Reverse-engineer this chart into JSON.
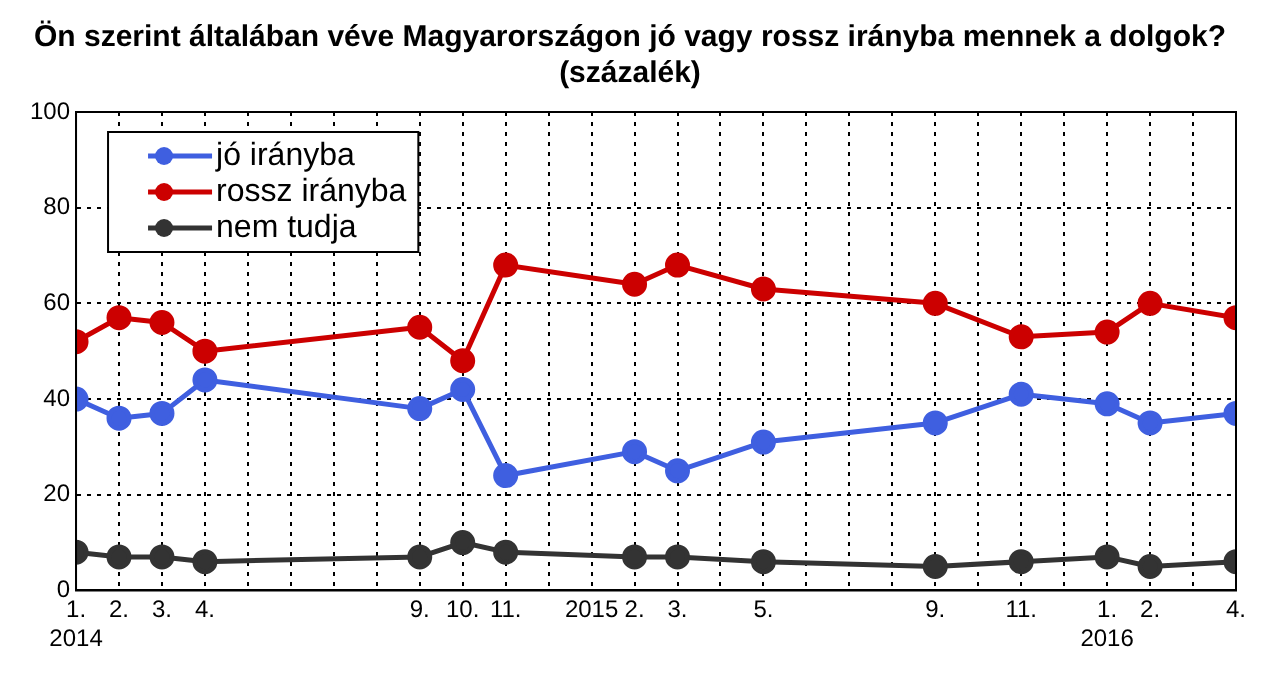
{
  "chart_data": {
    "type": "line",
    "title": "Ön szerint általában véve Magyarországon jó vagy rossz irányba mennek a dolgok?",
    "subtitle": "(százalék)",
    "x": [
      "2014-01",
      "2014-02",
      "2014-03",
      "2014-04",
      "2014-09",
      "2014-10",
      "2014-11",
      "2015-02",
      "2015-03",
      "2015-05",
      "2015-09",
      "2015-11",
      "2016-01",
      "2016-02",
      "2016-04"
    ],
    "series": [
      {
        "name": "jó irányba",
        "color": "#3f5fe0",
        "values": [
          40,
          36,
          37,
          44,
          38,
          42,
          24,
          29,
          25,
          31,
          35,
          41,
          39,
          35,
          37
        ]
      },
      {
        "name": "rossz irányba",
        "color": "#cc0000",
        "values": [
          52,
          57,
          56,
          50,
          55,
          48,
          68,
          64,
          68,
          63,
          60,
          53,
          54,
          60,
          57
        ]
      },
      {
        "name": "nem tudja",
        "color": "#333333",
        "values": [
          8,
          7,
          7,
          6,
          7,
          10,
          8,
          7,
          7,
          6,
          5,
          6,
          7,
          5,
          6
        ]
      }
    ],
    "xlim": [
      "2014-01",
      "2016-04"
    ],
    "xticks": [
      {
        "value": "2014-01",
        "label": "1.\n2014"
      },
      {
        "value": "2014-02",
        "label": "2."
      },
      {
        "value": "2014-03",
        "label": "3."
      },
      {
        "value": "2014-04",
        "label": "4."
      },
      {
        "value": "2014-05",
        "label": null
      },
      {
        "value": "2014-06",
        "label": null
      },
      {
        "value": "2014-07",
        "label": null
      },
      {
        "value": "2014-08",
        "label": null
      },
      {
        "value": "2014-09",
        "label": "9."
      },
      {
        "value": "2014-10",
        "label": "10."
      },
      {
        "value": "2014-11",
        "label": "11."
      },
      {
        "value": "2014-12",
        "label": null
      },
      {
        "value": "2015-01",
        "label": "2015"
      },
      {
        "value": "2015-02",
        "label": "2."
      },
      {
        "value": "2015-03",
        "label": "3."
      },
      {
        "value": "2015-04",
        "label": null
      },
      {
        "value": "2015-05",
        "label": "5."
      },
      {
        "value": "2015-06",
        "label": null
      },
      {
        "value": "2015-07",
        "label": null
      },
      {
        "value": "2015-08",
        "label": null
      },
      {
        "value": "2015-09",
        "label": "9."
      },
      {
        "value": "2015-10",
        "label": null
      },
      {
        "value": "2015-11",
        "label": "11."
      },
      {
        "value": "2015-12",
        "label": null
      },
      {
        "value": "2016-01",
        "label": "1.\n2016"
      },
      {
        "value": "2016-02",
        "label": "2."
      },
      {
        "value": "2016-03",
        "label": null
      },
      {
        "value": "2016-04",
        "label": "4."
      }
    ],
    "ylim": [
      0,
      100
    ],
    "yticks": [
      0,
      20,
      40,
      60,
      80,
      100
    ],
    "grid": true,
    "legend": "top left",
    "marker": "circle",
    "line_style": "solid"
  }
}
